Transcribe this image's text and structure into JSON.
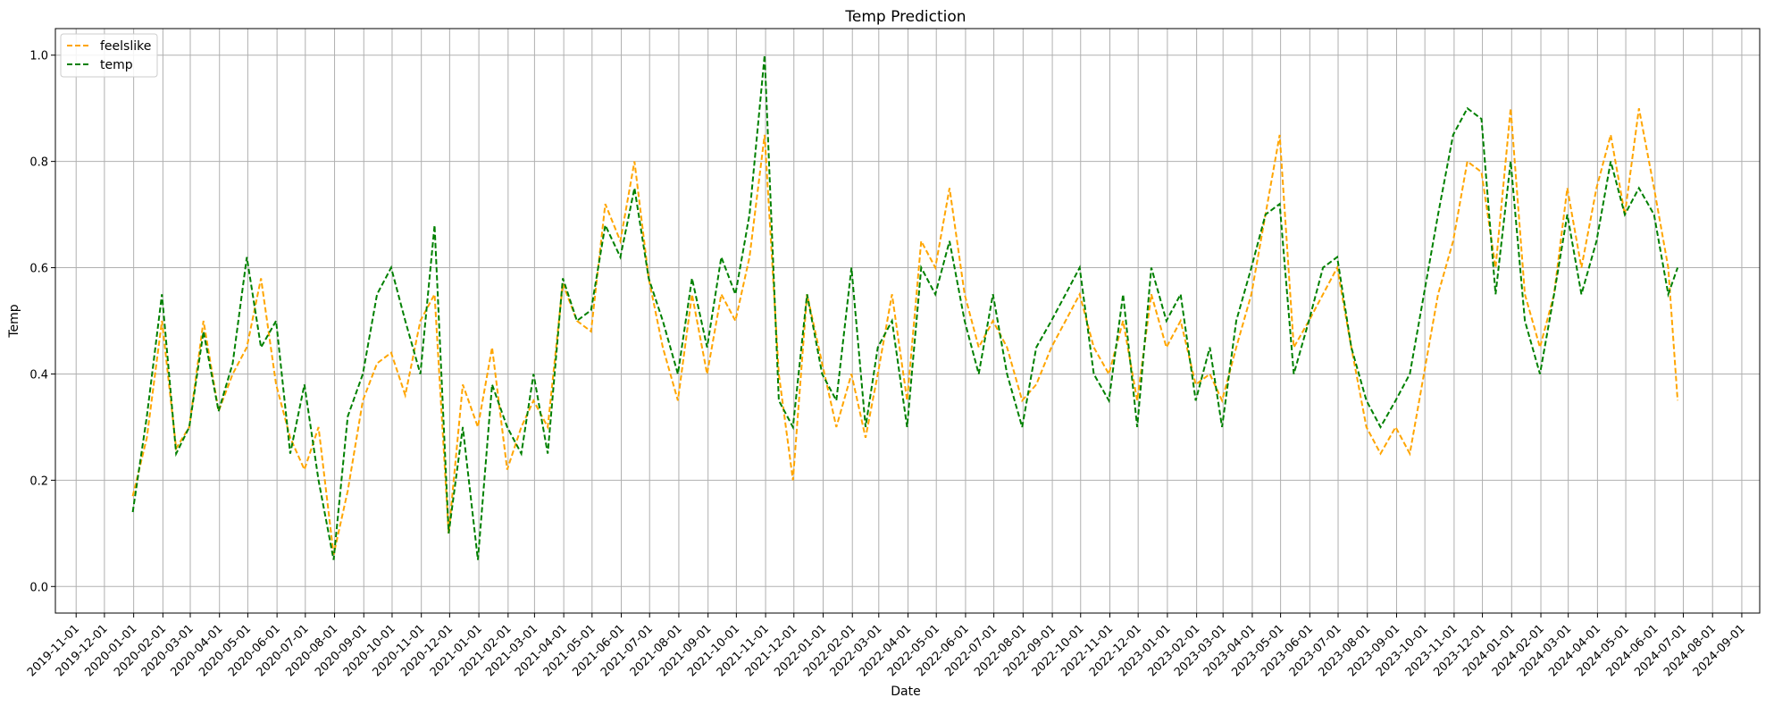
{
  "chart_data": {
    "type": "line",
    "title": "Temp Prediction",
    "xlabel": "Date",
    "ylabel": "Temp",
    "grid": true,
    "legend_position": "top-left",
    "xlim": [
      "2019-10-10",
      "2024-09-20"
    ],
    "ylim": [
      -0.05,
      1.05
    ],
    "y_ticks": [
      0.0,
      0.2,
      0.4,
      0.6,
      0.8,
      1.0
    ],
    "x_ticks": [
      "2019-11-01",
      "2019-12-01",
      "2020-01-01",
      "2020-02-01",
      "2020-03-01",
      "2020-04-01",
      "2020-05-01",
      "2020-06-01",
      "2020-07-01",
      "2020-08-01",
      "2020-09-01",
      "2020-10-01",
      "2020-11-01",
      "2020-12-01",
      "2021-01-01",
      "2021-02-01",
      "2021-03-01",
      "2021-04-01",
      "2021-05-01",
      "2021-06-01",
      "2021-07-01",
      "2021-08-01",
      "2021-09-01",
      "2021-10-01",
      "2021-11-01",
      "2021-12-01",
      "2022-01-01",
      "2022-02-01",
      "2022-03-01",
      "2022-04-01",
      "2022-05-01",
      "2022-06-01",
      "2022-07-01",
      "2022-08-01",
      "2022-09-01",
      "2022-10-01",
      "2022-11-01",
      "2022-12-01",
      "2023-01-01",
      "2023-02-01",
      "2023-03-01",
      "2023-04-01",
      "2023-05-01",
      "2023-06-01",
      "2023-07-01",
      "2023-08-01",
      "2023-09-01",
      "2023-10-01",
      "2023-11-01",
      "2023-12-01",
      "2024-01-01",
      "2024-02-01",
      "2024-03-01",
      "2024-04-01",
      "2024-05-01",
      "2024-06-01",
      "2024-07-01",
      "2024-08-01",
      "2024-09-01"
    ],
    "series": [
      {
        "name": "feelslike",
        "color": "#ffa500",
        "style": "dashed",
        "x": [
          "2019-12-31",
          "2020-01-15",
          "2020-01-31",
          "2020-02-15",
          "2020-02-29",
          "2020-03-15",
          "2020-03-31",
          "2020-04-15",
          "2020-04-30",
          "2020-05-15",
          "2020-05-31",
          "2020-06-15",
          "2020-06-30",
          "2020-07-15",
          "2020-07-31",
          "2020-08-15",
          "2020-08-31",
          "2020-09-15",
          "2020-09-30",
          "2020-10-15",
          "2020-10-31",
          "2020-11-15",
          "2020-11-30",
          "2020-12-15",
          "2020-12-31",
          "2021-01-15",
          "2021-01-31",
          "2021-02-15",
          "2021-02-28",
          "2021-03-15",
          "2021-03-31",
          "2021-04-15",
          "2021-04-30",
          "2021-05-15",
          "2021-05-31",
          "2021-06-15",
          "2021-06-30",
          "2021-07-15",
          "2021-07-31",
          "2021-08-15",
          "2021-08-31",
          "2021-09-15",
          "2021-09-30",
          "2021-10-15",
          "2021-10-31",
          "2021-11-15",
          "2021-11-30",
          "2021-12-15",
          "2021-12-31",
          "2022-01-15",
          "2022-01-31",
          "2022-02-15",
          "2022-02-28",
          "2022-03-15",
          "2022-03-31",
          "2022-04-15",
          "2022-04-30",
          "2022-05-15",
          "2022-05-31",
          "2022-06-15",
          "2022-06-30",
          "2022-07-15",
          "2022-07-31",
          "2022-08-15",
          "2022-08-31",
          "2022-09-15",
          "2022-09-30",
          "2022-10-15",
          "2022-10-31",
          "2022-11-15",
          "2022-11-30",
          "2022-12-15",
          "2022-12-31",
          "2023-01-15",
          "2023-01-31",
          "2023-02-15",
          "2023-02-28",
          "2023-03-15",
          "2023-03-31",
          "2023-04-15",
          "2023-04-30",
          "2023-05-15",
          "2023-05-31",
          "2023-06-15",
          "2023-06-30",
          "2023-07-15",
          "2023-07-31",
          "2023-08-15",
          "2023-08-31",
          "2023-09-15",
          "2023-09-30",
          "2023-10-15",
          "2023-10-31",
          "2023-11-15",
          "2023-11-30",
          "2023-12-15",
          "2023-12-31",
          "2024-01-15",
          "2024-01-31",
          "2024-02-15",
          "2024-02-29",
          "2024-03-15",
          "2024-03-31",
          "2024-04-15",
          "2024-04-30",
          "2024-05-15",
          "2024-05-31",
          "2024-06-15",
          "2024-06-25"
        ],
        "y": [
          0.17,
          0.28,
          0.5,
          0.26,
          0.3,
          0.5,
          0.33,
          0.4,
          0.45,
          0.58,
          0.38,
          0.28,
          0.22,
          0.3,
          0.06,
          0.18,
          0.35,
          0.42,
          0.44,
          0.36,
          0.5,
          0.55,
          0.1,
          0.38,
          0.3,
          0.45,
          0.22,
          0.3,
          0.35,
          0.3,
          0.57,
          0.5,
          0.48,
          0.72,
          0.65,
          0.8,
          0.58,
          0.45,
          0.35,
          0.55,
          0.4,
          0.55,
          0.5,
          0.62,
          0.85,
          0.4,
          0.2,
          0.55,
          0.42,
          0.3,
          0.4,
          0.28,
          0.4,
          0.55,
          0.35,
          0.65,
          0.6,
          0.75,
          0.55,
          0.45,
          0.5,
          0.45,
          0.35,
          0.38,
          0.45,
          0.5,
          0.55,
          0.45,
          0.4,
          0.5,
          0.35,
          0.55,
          0.45,
          0.5,
          0.38,
          0.4,
          0.35,
          0.45,
          0.55,
          0.7,
          0.85,
          0.45,
          0.5,
          0.55,
          0.6,
          0.45,
          0.3,
          0.25,
          0.3,
          0.25,
          0.4,
          0.55,
          0.65,
          0.8,
          0.78,
          0.6,
          0.9,
          0.55,
          0.45,
          0.55,
          0.75,
          0.6,
          0.75,
          0.85,
          0.7,
          0.9,
          0.75,
          0.6,
          0.35
        ]
      },
      {
        "name": "temp",
        "color": "#008000",
        "style": "dashed",
        "x": [
          "2019-12-31",
          "2020-01-15",
          "2020-01-31",
          "2020-02-15",
          "2020-02-29",
          "2020-03-15",
          "2020-03-31",
          "2020-04-15",
          "2020-04-30",
          "2020-05-15",
          "2020-05-31",
          "2020-06-15",
          "2020-06-30",
          "2020-07-15",
          "2020-07-31",
          "2020-08-15",
          "2020-08-31",
          "2020-09-15",
          "2020-09-30",
          "2020-10-15",
          "2020-10-31",
          "2020-11-15",
          "2020-11-30",
          "2020-12-15",
          "2020-12-31",
          "2021-01-15",
          "2021-01-31",
          "2021-02-15",
          "2021-02-28",
          "2021-03-15",
          "2021-03-31",
          "2021-04-15",
          "2021-04-30",
          "2021-05-15",
          "2021-05-31",
          "2021-06-15",
          "2021-06-30",
          "2021-07-15",
          "2021-07-31",
          "2021-08-15",
          "2021-08-31",
          "2021-09-15",
          "2021-09-30",
          "2021-10-15",
          "2021-10-31",
          "2021-11-15",
          "2021-11-30",
          "2021-12-15",
          "2021-12-31",
          "2022-01-15",
          "2022-01-31",
          "2022-02-15",
          "2022-02-28",
          "2022-03-15",
          "2022-03-31",
          "2022-04-15",
          "2022-04-30",
          "2022-05-15",
          "2022-05-31",
          "2022-06-15",
          "2022-06-30",
          "2022-07-15",
          "2022-07-31",
          "2022-08-15",
          "2022-08-31",
          "2022-09-15",
          "2022-09-30",
          "2022-10-15",
          "2022-10-31",
          "2022-11-15",
          "2022-11-30",
          "2022-12-15",
          "2022-12-31",
          "2023-01-15",
          "2023-01-31",
          "2023-02-15",
          "2023-02-28",
          "2023-03-15",
          "2023-03-31",
          "2023-04-15",
          "2023-04-30",
          "2023-05-15",
          "2023-05-31",
          "2023-06-15",
          "2023-06-30",
          "2023-07-15",
          "2023-07-31",
          "2023-08-15",
          "2023-08-31",
          "2023-09-15",
          "2023-09-30",
          "2023-10-15",
          "2023-10-31",
          "2023-11-15",
          "2023-11-30",
          "2023-12-15",
          "2023-12-31",
          "2024-01-15",
          "2024-01-31",
          "2024-02-15",
          "2024-02-29",
          "2024-03-15",
          "2024-03-31",
          "2024-04-15",
          "2024-04-30",
          "2024-05-15",
          "2024-05-31",
          "2024-06-15",
          "2024-06-25"
        ],
        "y": [
          0.14,
          0.32,
          0.55,
          0.25,
          0.3,
          0.48,
          0.33,
          0.42,
          0.62,
          0.45,
          0.5,
          0.25,
          0.38,
          0.2,
          0.05,
          0.32,
          0.4,
          0.55,
          0.6,
          0.5,
          0.4,
          0.68,
          0.1,
          0.3,
          0.05,
          0.38,
          0.3,
          0.25,
          0.4,
          0.25,
          0.58,
          0.5,
          0.52,
          0.68,
          0.62,
          0.75,
          0.58,
          0.5,
          0.4,
          0.58,
          0.45,
          0.62,
          0.55,
          0.7,
          1.0,
          0.35,
          0.3,
          0.55,
          0.4,
          0.35,
          0.6,
          0.3,
          0.45,
          0.5,
          0.3,
          0.6,
          0.55,
          0.65,
          0.5,
          0.4,
          0.55,
          0.4,
          0.3,
          0.45,
          0.5,
          0.55,
          0.6,
          0.4,
          0.35,
          0.55,
          0.3,
          0.6,
          0.5,
          0.55,
          0.35,
          0.45,
          0.3,
          0.5,
          0.6,
          0.7,
          0.72,
          0.4,
          0.5,
          0.6,
          0.62,
          0.45,
          0.35,
          0.3,
          0.35,
          0.4,
          0.55,
          0.7,
          0.85,
          0.9,
          0.88,
          0.55,
          0.8,
          0.5,
          0.4,
          0.55,
          0.7,
          0.55,
          0.65,
          0.8,
          0.7,
          0.75,
          0.7,
          0.55,
          0.6
        ]
      }
    ]
  }
}
